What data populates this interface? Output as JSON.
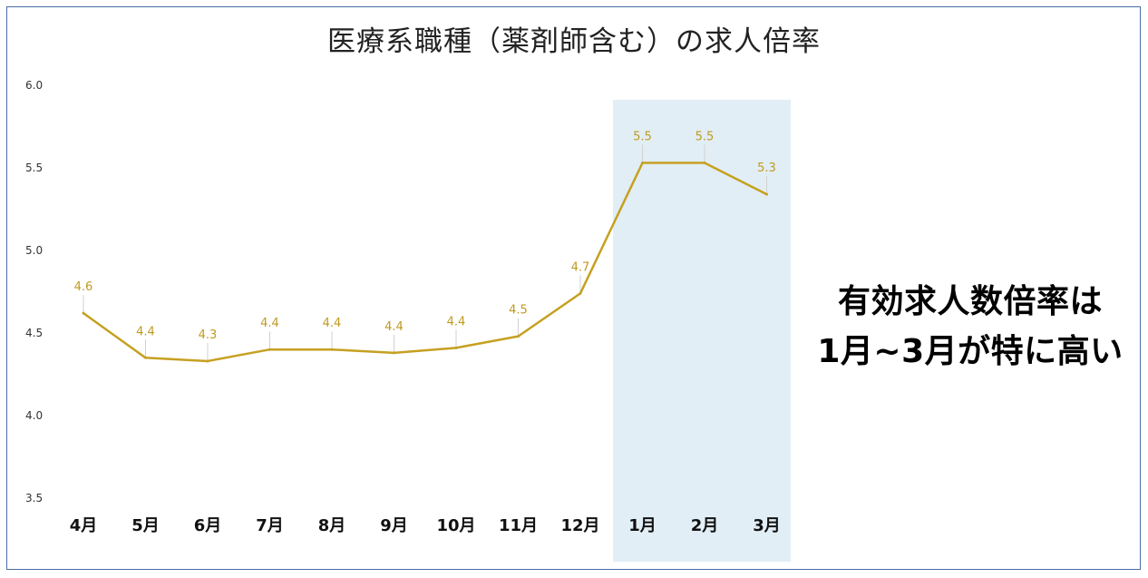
{
  "chart_data": {
    "type": "line",
    "title": "医療系職種（薬剤師含む）の求人倍率",
    "categories": [
      "4月",
      "5月",
      "6月",
      "7月",
      "8月",
      "9月",
      "10月",
      "11月",
      "12月",
      "1月",
      "2月",
      "3月"
    ],
    "series": [
      {
        "values": [
          4.62,
          4.35,
          4.33,
          4.4,
          4.4,
          4.38,
          4.41,
          4.48,
          4.74,
          5.53,
          5.53,
          5.34
        ],
        "labels": [
          "4.6",
          "4.4",
          "4.3",
          "4.4",
          "4.4",
          "4.4",
          "4.4",
          "4.5",
          "4.7",
          "5.5",
          "5.5",
          "5.3"
        ]
      }
    ],
    "yticks": [
      "6.0",
      "5.5",
      "5.0",
      "4.5",
      "4.0",
      "3.5"
    ],
    "ylim": [
      3.5,
      6.0
    ],
    "grid": false,
    "line_color": "#c6a021",
    "highlight_color": "#e2eef5",
    "highlight_categories": [
      "1月",
      "2月",
      "3月"
    ]
  },
  "annotation": {
    "line1": "有効求人数倍率は",
    "line2": "1月~3月が特に高い"
  }
}
